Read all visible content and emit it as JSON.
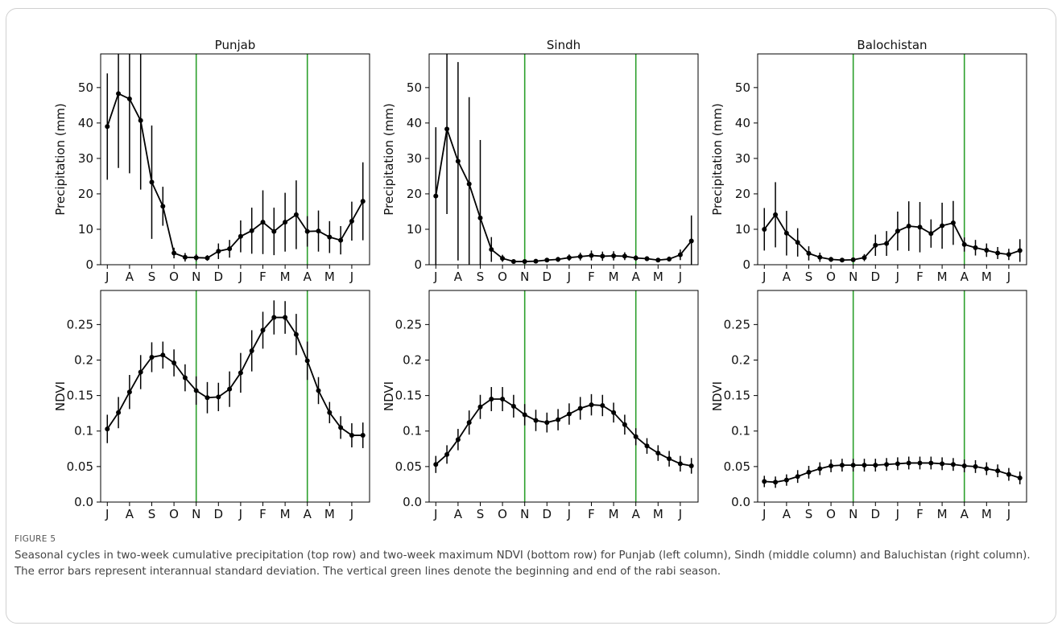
{
  "figure": {
    "label": "FIGURE 5",
    "caption": "Seasonal cycles in two-week cumulative precipitation (top row) and two-week maximum NDVI (bottom row) for Punjab (left column), Sindh (middle column) and Baluchistan (right column). The error bars represent interannual standard deviation. The vertical green lines denote the beginning and end of the rabi season."
  },
  "colors": {
    "line": "#000000",
    "rabi_line": "#2ca02c",
    "axes": "#000000"
  },
  "chart_data": [
    {
      "type": "line",
      "title": "Punjab",
      "ylabel": "Precipitation (mm)",
      "ylim": [
        0,
        59.5
      ],
      "yticks": [
        0,
        10,
        20,
        30,
        40,
        50
      ],
      "ytick_labels": [
        "0",
        "10",
        "20",
        "30",
        "40",
        "50"
      ],
      "xlim": [
        -0.6,
        23.6
      ],
      "xticks": [
        0,
        2,
        4,
        6,
        8,
        10,
        12,
        14,
        16,
        18,
        20,
        22
      ],
      "xtick_labels": [
        "J",
        "A",
        "S",
        "O",
        "N",
        "D",
        "J",
        "F",
        "M",
        "A",
        "M",
        "J"
      ],
      "vlines": [
        8,
        18
      ],
      "series": [
        {
          "x": [
            0,
            1,
            2,
            3,
            4,
            5,
            6,
            7,
            8,
            9,
            10,
            11,
            12,
            13,
            14,
            15,
            16,
            17,
            18,
            19,
            20,
            21,
            22,
            23
          ],
          "y": [
            39,
            48.3,
            46.8,
            40.7,
            23.3,
            16.5,
            3.3,
            2.1,
            2.0,
            1.9,
            3.8,
            4.5,
            8.0,
            9.6,
            12.0,
            9.4,
            12.0,
            14.1,
            9.4,
            9.5,
            7.8,
            6.9,
            12.3,
            17.9
          ],
          "err": [
            15,
            21,
            21,
            19.5,
            16,
            5.5,
            1.5,
            1.2,
            1.0,
            0.8,
            2.2,
            2.5,
            4.5,
            6.5,
            9,
            6.7,
            8.3,
            9.7,
            4.3,
            5.8,
            4.5,
            4,
            5.5,
            11
          ]
        }
      ]
    },
    {
      "type": "line",
      "title": "Sindh",
      "ylabel": "Precipitation (mm)",
      "ylim": [
        0,
        59.5
      ],
      "yticks": [
        0,
        10,
        20,
        30,
        40,
        50
      ],
      "ytick_labels": [
        "0",
        "10",
        "20",
        "30",
        "40",
        "50"
      ],
      "xlim": [
        -0.6,
        23.6
      ],
      "xticks": [
        0,
        2,
        4,
        6,
        8,
        10,
        12,
        14,
        16,
        18,
        20,
        22
      ],
      "xtick_labels": [
        "J",
        "A",
        "S",
        "O",
        "N",
        "D",
        "J",
        "F",
        "M",
        "A",
        "M",
        "J"
      ],
      "vlines": [
        8,
        18
      ],
      "series": [
        {
          "x": [
            0,
            1,
            2,
            3,
            4,
            5,
            6,
            7,
            8,
            9,
            10,
            11,
            12,
            13,
            14,
            15,
            16,
            17,
            18,
            19,
            20,
            21,
            22,
            23
          ],
          "y": [
            19.4,
            38.3,
            29.2,
            22.8,
            13.2,
            4.3,
            1.8,
            0.9,
            0.9,
            1.0,
            1.3,
            1.5,
            2.0,
            2.3,
            2.6,
            2.4,
            2.5,
            2.4,
            1.9,
            1.7,
            1.3,
            1.6,
            2.8,
            6.7
          ],
          "err": [
            19.4,
            24,
            28,
            24.5,
            22,
            3.5,
            1.0,
            0.5,
            0.5,
            0.5,
            0.6,
            0.7,
            0.9,
            1.1,
            1.4,
            1.3,
            1.3,
            1.1,
            0.8,
            0.7,
            0.6,
            0.7,
            1.5,
            7.2
          ]
        }
      ]
    },
    {
      "type": "line",
      "title": "Balochistan",
      "ylabel": "Precipitation (mm)",
      "ylim": [
        0,
        59.5
      ],
      "yticks": [
        0,
        10,
        20,
        30,
        40,
        50
      ],
      "ytick_labels": [
        "0",
        "10",
        "20",
        "30",
        "40",
        "50"
      ],
      "xlim": [
        -0.6,
        23.6
      ],
      "xticks": [
        0,
        2,
        4,
        6,
        8,
        10,
        12,
        14,
        16,
        18,
        20,
        22
      ],
      "xtick_labels": [
        "J",
        "A",
        "S",
        "O",
        "N",
        "D",
        "J",
        "F",
        "M",
        "A",
        "M",
        "J"
      ],
      "vlines": [
        8,
        18
      ],
      "series": [
        {
          "x": [
            0,
            1,
            2,
            3,
            4,
            5,
            6,
            7,
            8,
            9,
            10,
            11,
            12,
            13,
            14,
            15,
            16,
            17,
            18,
            19,
            20,
            21,
            22,
            23
          ],
          "y": [
            10,
            14.1,
            8.9,
            6.3,
            3.2,
            2.1,
            1.5,
            1.3,
            1.4,
            2.0,
            5.5,
            6.0,
            9.5,
            10.9,
            10.6,
            8.8,
            11.0,
            11.8,
            5.7,
            4.8,
            4.1,
            3.3,
            2.9,
            4.0
          ],
          "err": [
            6,
            9.2,
            6.3,
            4.0,
            2.0,
            1.3,
            0.7,
            0.6,
            0.6,
            1.0,
            3.0,
            3.5,
            5.5,
            7.0,
            7.1,
            4.0,
            6.5,
            6.2,
            2.0,
            2.2,
            1.9,
            1.7,
            1.6,
            3.2
          ]
        }
      ]
    },
    {
      "type": "line",
      "ylabel": "NDVI",
      "ylim": [
        0,
        0.298
      ],
      "yticks": [
        0,
        0.05,
        0.1,
        0.15,
        0.2,
        0.25
      ],
      "ytick_labels": [
        "0.0",
        "0.05",
        "0.1",
        "0.15",
        "0.2",
        "0.25"
      ],
      "xlim": [
        -0.6,
        23.6
      ],
      "xticks": [
        0,
        2,
        4,
        6,
        8,
        10,
        12,
        14,
        16,
        18,
        20,
        22
      ],
      "xtick_labels": [
        "J",
        "A",
        "S",
        "O",
        "N",
        "D",
        "J",
        "F",
        "M",
        "A",
        "M",
        "J"
      ],
      "vlines": [
        8,
        18
      ],
      "series": [
        {
          "x": [
            0,
            1,
            2,
            3,
            4,
            5,
            6,
            7,
            8,
            9,
            10,
            11,
            12,
            13,
            14,
            15,
            16,
            17,
            18,
            19,
            20,
            21,
            22,
            23
          ],
          "y": [
            0.103,
            0.126,
            0.155,
            0.183,
            0.204,
            0.207,
            0.196,
            0.175,
            0.157,
            0.147,
            0.148,
            0.159,
            0.182,
            0.213,
            0.242,
            0.26,
            0.26,
            0.236,
            0.199,
            0.157,
            0.126,
            0.105,
            0.094,
            0.094
          ],
          "err": [
            0.02,
            0.022,
            0.024,
            0.024,
            0.021,
            0.019,
            0.019,
            0.019,
            0.02,
            0.022,
            0.02,
            0.025,
            0.028,
            0.029,
            0.026,
            0.024,
            0.023,
            0.029,
            0.027,
            0.019,
            0.015,
            0.016,
            0.017,
            0.018
          ]
        }
      ]
    },
    {
      "type": "line",
      "ylabel": "NDVI",
      "ylim": [
        0,
        0.298
      ],
      "yticks": [
        0,
        0.05,
        0.1,
        0.15,
        0.2,
        0.25
      ],
      "ytick_labels": [
        "0.0",
        "0.05",
        "0.1",
        "0.15",
        "0.2",
        "0.25"
      ],
      "xlim": [
        -0.6,
        23.6
      ],
      "xticks": [
        0,
        2,
        4,
        6,
        8,
        10,
        12,
        14,
        16,
        18,
        20,
        22
      ],
      "xtick_labels": [
        "J",
        "A",
        "S",
        "O",
        "N",
        "D",
        "J",
        "F",
        "M",
        "A",
        "M",
        "J"
      ],
      "vlines": [
        8,
        18
      ],
      "series": [
        {
          "x": [
            0,
            1,
            2,
            3,
            4,
            5,
            6,
            7,
            8,
            9,
            10,
            11,
            12,
            13,
            14,
            15,
            16,
            17,
            18,
            19,
            20,
            21,
            22,
            23
          ],
          "y": [
            0.053,
            0.067,
            0.088,
            0.112,
            0.134,
            0.145,
            0.145,
            0.135,
            0.123,
            0.115,
            0.112,
            0.116,
            0.124,
            0.132,
            0.137,
            0.136,
            0.126,
            0.109,
            0.092,
            0.079,
            0.069,
            0.061,
            0.054,
            0.051
          ],
          "err": [
            0.012,
            0.013,
            0.015,
            0.017,
            0.017,
            0.017,
            0.017,
            0.016,
            0.015,
            0.015,
            0.014,
            0.015,
            0.015,
            0.016,
            0.015,
            0.015,
            0.014,
            0.014,
            0.012,
            0.011,
            0.011,
            0.011,
            0.011,
            0.011
          ]
        }
      ]
    },
    {
      "type": "line",
      "ylabel": "NDVI",
      "ylim": [
        0,
        0.298
      ],
      "yticks": [
        0,
        0.05,
        0.1,
        0.15,
        0.2,
        0.25
      ],
      "ytick_labels": [
        "0.0",
        "0.05",
        "0.1",
        "0.15",
        "0.2",
        "0.25"
      ],
      "xlim": [
        -0.6,
        23.6
      ],
      "xticks": [
        0,
        2,
        4,
        6,
        8,
        10,
        12,
        14,
        16,
        18,
        20,
        22
      ],
      "xtick_labels": [
        "J",
        "A",
        "S",
        "O",
        "N",
        "D",
        "J",
        "F",
        "M",
        "A",
        "M",
        "J"
      ],
      "vlines": [
        8,
        18
      ],
      "series": [
        {
          "x": [
            0,
            1,
            2,
            3,
            4,
            5,
            6,
            7,
            8,
            9,
            10,
            11,
            12,
            13,
            14,
            15,
            16,
            17,
            18,
            19,
            20,
            21,
            22,
            23
          ],
          "y": [
            0.029,
            0.028,
            0.031,
            0.036,
            0.042,
            0.047,
            0.051,
            0.052,
            0.052,
            0.052,
            0.052,
            0.053,
            0.054,
            0.055,
            0.055,
            0.055,
            0.054,
            0.053,
            0.051,
            0.05,
            0.047,
            0.044,
            0.039,
            0.034
          ],
          "err": [
            0.008,
            0.008,
            0.008,
            0.009,
            0.009,
            0.009,
            0.009,
            0.009,
            0.009,
            0.009,
            0.009,
            0.009,
            0.009,
            0.009,
            0.009,
            0.009,
            0.009,
            0.009,
            0.009,
            0.009,
            0.009,
            0.009,
            0.009,
            0.009
          ]
        }
      ]
    }
  ]
}
